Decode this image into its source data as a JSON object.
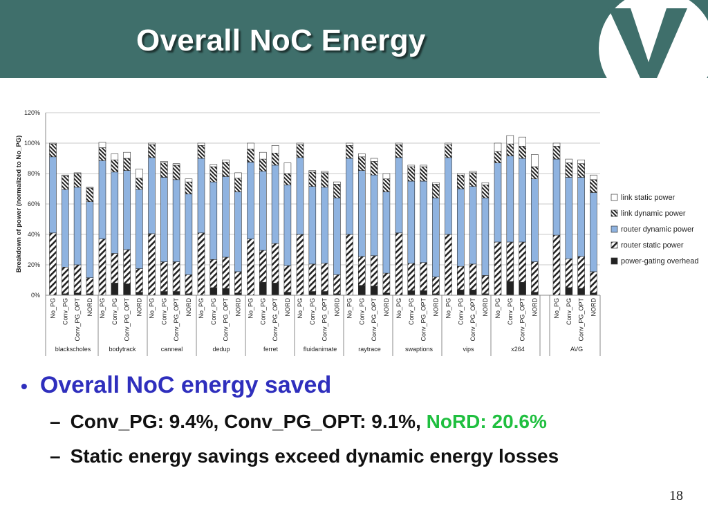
{
  "slide": {
    "title": "Overall NoC Energy",
    "page_number": "18",
    "bullet_main": "Overall NoC energy saved",
    "sub1_prefix": "Conv_PG: 9.4%, Conv_PG_OPT: 9.1%,",
    "sub1_highlight": "NoRD: 20.6%",
    "sub2": "Static energy savings exceed dynamic energy losses",
    "bullet_glyph": "•",
    "dash_glyph": "–"
  },
  "colors": {
    "header": "#3f6f6b",
    "bullet_main": "#2f2fbd",
    "highlight": "#1fbf3f",
    "router_dynamic": "#8fb3e0",
    "power_gating": "#222222"
  },
  "icons": [
    "logo-v-icon"
  ],
  "chart_data": {
    "type": "bar",
    "stacked": true,
    "ylabel": "Breakdown of power (normalized to No_PG)",
    "ylim": [
      0,
      120
    ],
    "yticks": [
      "0%",
      "20%",
      "40%",
      "60%",
      "80%",
      "100%",
      "120%"
    ],
    "grid": true,
    "legend_position": "right",
    "configs": [
      "No_PG",
      "Conv_PG",
      "Conv_PG_OPT",
      "NORD"
    ],
    "groups": [
      "blackscholes",
      "bodytrack",
      "canneal",
      "dedup",
      "ferret",
      "fluidanimate",
      "raytrace",
      "swaptions",
      "vips",
      "x264",
      "AVG"
    ],
    "series": [
      {
        "name": "power-gating overhead",
        "values": [
          [
            0,
            1,
            1.5,
            1
          ],
          [
            0,
            8,
            7.5,
            2
          ],
          [
            0,
            2.5,
            2.5,
            1
          ],
          [
            0,
            5,
            4.5,
            1.5
          ],
          [
            0,
            8.5,
            8,
            2
          ],
          [
            0,
            2.5,
            2.5,
            1
          ],
          [
            0,
            6.5,
            6,
            1.5
          ],
          [
            0,
            3,
            3,
            1
          ],
          [
            0,
            3.5,
            3.5,
            1
          ],
          [
            0,
            9,
            8.5,
            2
          ],
          [
            0,
            5,
            4.5,
            1.5
          ]
        ]
      },
      {
        "name": "router static power",
        "values": [
          [
            41,
            17.5,
            18.5,
            10.5
          ],
          [
            37,
            19.5,
            22.5,
            15.5
          ],
          [
            40.5,
            19.5,
            19.5,
            12.5
          ],
          [
            41,
            18.5,
            20.5,
            14
          ],
          [
            37,
            21,
            26,
            17.5
          ],
          [
            40,
            18,
            18.5,
            12.5
          ],
          [
            40,
            19,
            20,
            13
          ],
          [
            41,
            18,
            18.5,
            11
          ],
          [
            40,
            15.5,
            17,
            12
          ],
          [
            35,
            26,
            26.5,
            20
          ],
          [
            39.5,
            19,
            21,
            14
          ]
        ]
      },
      {
        "name": "router dynamic power",
        "values": [
          [
            50,
            51,
            51,
            50
          ],
          [
            51.5,
            53.5,
            52,
            52
          ],
          [
            50,
            55.5,
            54,
            53
          ],
          [
            49,
            51,
            53,
            52.5
          ],
          [
            50.5,
            52,
            51.5,
            53
          ],
          [
            50.5,
            51,
            50,
            50.5
          ],
          [
            50,
            56.5,
            53,
            53.5
          ],
          [
            49.5,
            54,
            53.5,
            52
          ],
          [
            50.5,
            51,
            51,
            51
          ],
          [
            52,
            56.5,
            55,
            54.5
          ],
          [
            50,
            53.5,
            52,
            52
          ]
        ]
      },
      {
        "name": "link dynamic power",
        "values": [
          [
            8.5,
            9,
            9,
            9
          ],
          [
            8.5,
            8,
            8,
            7.5
          ],
          [
            8.5,
            9.5,
            9.5,
            8
          ],
          [
            8.5,
            10,
            9.5,
            9
          ],
          [
            8.5,
            8,
            8,
            7.5
          ],
          [
            8.5,
            9.5,
            9.5,
            9
          ],
          [
            8.5,
            9,
            9,
            8.5
          ],
          [
            8.5,
            9.5,
            9.5,
            9
          ],
          [
            8.5,
            9,
            9,
            8.5
          ],
          [
            7.5,
            8,
            8,
            8
          ],
          [
            8.5,
            9.5,
            9,
            8.5
          ]
        ]
      },
      {
        "name": "link static power",
        "values": [
          [
            0.5,
            0.5,
            0.5,
            0.5
          ],
          [
            3.5,
            4,
            4,
            6
          ],
          [
            1,
            1,
            1,
            2
          ],
          [
            1.5,
            1.5,
            1.5,
            3.5
          ],
          [
            4,
            4.5,
            5,
            7
          ],
          [
            1,
            1,
            1,
            1.5
          ],
          [
            1.5,
            2,
            2,
            3.5
          ],
          [
            1,
            1,
            1,
            1
          ],
          [
            1,
            1,
            1,
            1.5
          ],
          [
            5.5,
            5.5,
            6,
            8
          ],
          [
            2,
            2.5,
            2.5,
            3
          ]
        ]
      }
    ]
  }
}
